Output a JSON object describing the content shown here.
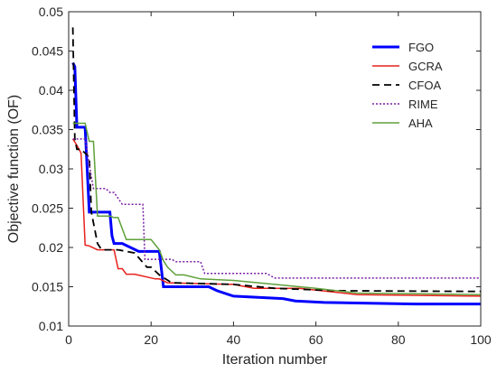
{
  "chart_data": {
    "type": "line",
    "title": "",
    "xlabel": "Iteration number",
    "ylabel": "Objective function (OF)",
    "xlim": [
      0,
      100
    ],
    "ylim": [
      0.01,
      0.05
    ],
    "xticks": [
      0,
      20,
      40,
      60,
      80,
      100
    ],
    "yticks": [
      0.01,
      0.015,
      0.02,
      0.025,
      0.03,
      0.035,
      0.04,
      0.045,
      0.05
    ],
    "xtick_labels": [
      "0",
      "20",
      "40",
      "60",
      "80",
      "100"
    ],
    "ytick_labels": [
      "0.01",
      "0.015",
      "0.02",
      "0.025",
      "0.03",
      "0.035",
      "0.04",
      "0.045",
      "0.05"
    ],
    "grid": false,
    "legend_position": "top-right",
    "series": [
      {
        "name": "FGO",
        "color": "#0000ff",
        "dash": "solid",
        "width": 3,
        "x": [
          1,
          1.5,
          2,
          2.5,
          4,
          5,
          6,
          10,
          10.5,
          11,
          13,
          17,
          22,
          23,
          34,
          36,
          40,
          52,
          55,
          62,
          84,
          100
        ],
        "y": [
          0.0435,
          0.043,
          0.0353,
          0.0353,
          0.0353,
          0.0245,
          0.0245,
          0.0245,
          0.0215,
          0.0205,
          0.0205,
          0.0195,
          0.0195,
          0.015,
          0.015,
          0.0145,
          0.0138,
          0.0135,
          0.0132,
          0.013,
          0.0128,
          0.0128
        ]
      },
      {
        "name": "GCRA",
        "color": "#e8201b",
        "dash": "solid",
        "width": 1.5,
        "x": [
          1,
          2,
          3,
          4,
          5,
          7,
          11,
          12,
          13,
          14,
          16,
          21,
          22,
          24,
          40,
          45,
          56,
          70,
          100
        ],
        "y": [
          0.0338,
          0.033,
          0.032,
          0.0203,
          0.0202,
          0.0197,
          0.0197,
          0.0173,
          0.0173,
          0.0166,
          0.0166,
          0.016,
          0.016,
          0.0155,
          0.0153,
          0.0148,
          0.0148,
          0.014,
          0.0138
        ]
      },
      {
        "name": "CFOA",
        "color": "#000000",
        "dash": "8,5",
        "width": 1.8,
        "x": [
          1,
          1.5,
          2,
          3,
          5,
          5.5,
          7,
          8,
          12,
          16,
          19,
          20,
          22,
          25,
          40,
          50,
          65,
          100
        ],
        "y": [
          0.048,
          0.0338,
          0.0325,
          0.0325,
          0.0315,
          0.0245,
          0.0205,
          0.0197,
          0.0197,
          0.0193,
          0.0175,
          0.0175,
          0.0165,
          0.0155,
          0.0153,
          0.0148,
          0.0145,
          0.0144
        ]
      },
      {
        "name": "RIME",
        "color": "#7a1fa2",
        "dash": "2,2",
        "width": 1.5,
        "x": [
          1,
          4,
          5,
          6,
          7,
          9,
          10,
          11,
          13,
          15,
          18,
          18.5,
          25,
          26,
          32,
          33,
          48,
          50,
          100
        ],
        "y": [
          0.0338,
          0.0338,
          0.0305,
          0.0275,
          0.0275,
          0.0275,
          0.027,
          0.027,
          0.0255,
          0.0255,
          0.0255,
          0.0185,
          0.0185,
          0.0182,
          0.0182,
          0.0167,
          0.0167,
          0.0161,
          0.0161
        ]
      },
      {
        "name": "AHA",
        "color": "#5ea03a",
        "dash": "solid",
        "width": 1.5,
        "x": [
          1,
          4,
          5,
          6,
          7,
          10,
          11,
          12,
          14,
          15,
          20,
          22,
          23,
          24,
          26,
          28,
          32,
          40,
          60,
          70,
          100
        ],
        "y": [
          0.0358,
          0.0358,
          0.0335,
          0.0335,
          0.024,
          0.024,
          0.0238,
          0.0238,
          0.021,
          0.021,
          0.021,
          0.0197,
          0.0183,
          0.0175,
          0.0165,
          0.0165,
          0.016,
          0.0158,
          0.0148,
          0.0142,
          0.014
        ]
      }
    ]
  }
}
